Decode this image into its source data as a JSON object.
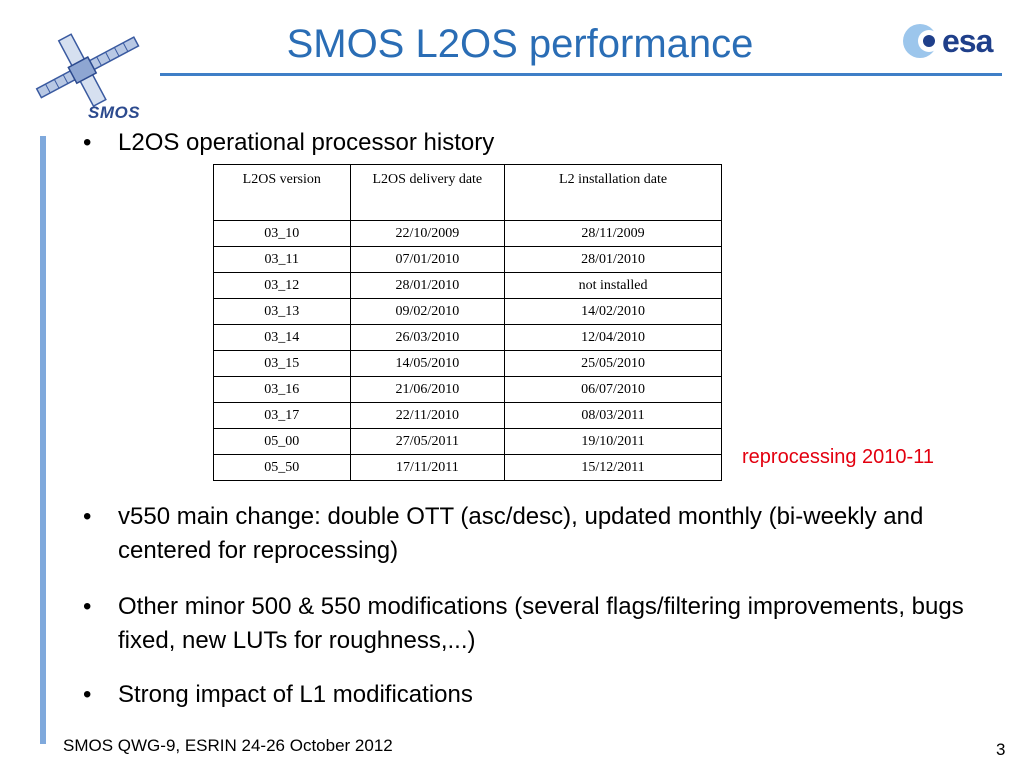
{
  "slide": {
    "title": "SMOS L2OS performance",
    "logos": {
      "smos": "SMOS",
      "esa": "esa"
    },
    "bullets": [
      "L2OS operational processor history",
      "v550 main change: double OTT (asc/desc), updated monthly (bi-weekly and centered for reprocessing)",
      "Other minor 500 & 550 modifications (several flags/filtering improvements, bugs fixed, new LUTs for roughness,...)",
      "Strong impact of L1 modifications"
    ],
    "bullet_symbol": "•",
    "table": {
      "headers": [
        "L2OS version",
        "L2OS delivery date",
        "L2 installation date"
      ],
      "rows": [
        [
          "03_10",
          "22/10/2009",
          "28/11/2009"
        ],
        [
          "03_11",
          "07/01/2010",
          "28/01/2010"
        ],
        [
          "03_12",
          "28/01/2010",
          "not installed"
        ],
        [
          "03_13",
          "09/02/2010",
          "14/02/2010"
        ],
        [
          "03_14",
          "26/03/2010",
          "12/04/2010"
        ],
        [
          "03_15",
          "14/05/2010",
          "25/05/2010"
        ],
        [
          "03_16",
          "21/06/2010",
          "06/07/2010"
        ],
        [
          "03_17",
          "22/11/2010",
          "08/03/2011"
        ],
        [
          "05_00",
          "27/05/2011",
          "19/10/2011"
        ],
        [
          "05_50",
          "17/11/2011",
          "15/12/2011"
        ]
      ]
    },
    "annotation": "reprocessing 2010-11",
    "footer": {
      "left": "SMOS QWG-9, ESRIN 24-26 October 2012",
      "page_number": "3"
    },
    "colors": {
      "title": "#2a6db5",
      "accent_bar": "#7fa9dc",
      "annotation": "#e3000f"
    }
  }
}
